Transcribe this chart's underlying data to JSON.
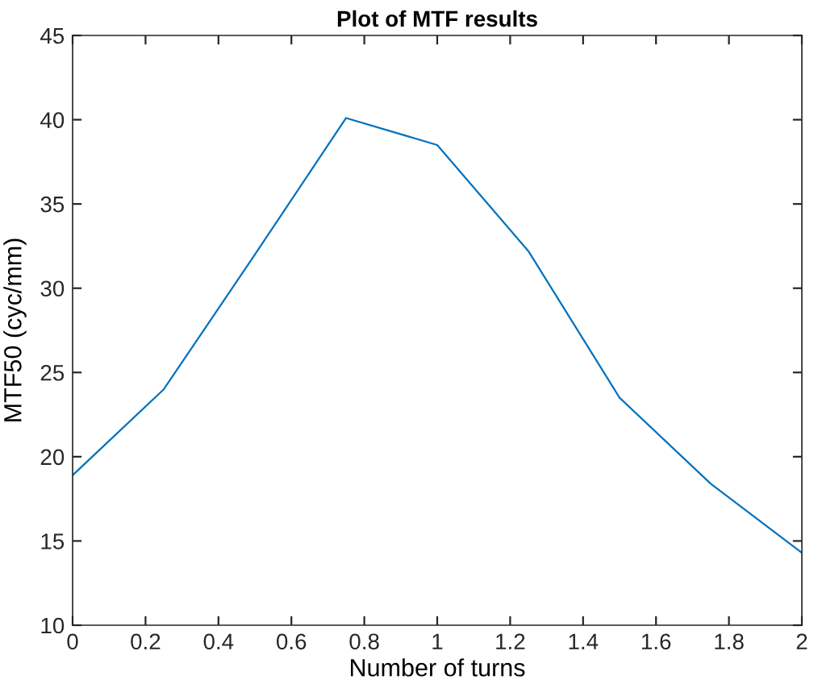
{
  "chart_data": {
    "type": "line",
    "title": "Plot of MTF results",
    "xlabel": "Number of turns",
    "ylabel": "MTF50 (cyc/mm)",
    "x": [
      0,
      0.25,
      0.5,
      0.75,
      1,
      1.25,
      1.5,
      1.75,
      2
    ],
    "series": [
      {
        "color": "#0072bd",
        "values": [
          18.9,
          24.0,
          32.0,
          40.1,
          38.5,
          32.2,
          23.5,
          18.4,
          14.3
        ]
      }
    ],
    "xlim": [
      0,
      2
    ],
    "xticks": [
      0,
      0.2,
      0.4,
      0.6,
      0.8,
      1,
      1.2,
      1.4,
      1.6,
      1.8,
      2
    ],
    "ylim": [
      10,
      45
    ],
    "yticks": [
      10,
      15,
      20,
      25,
      30,
      35,
      40,
      45
    ],
    "grid": false,
    "legend": false
  }
}
